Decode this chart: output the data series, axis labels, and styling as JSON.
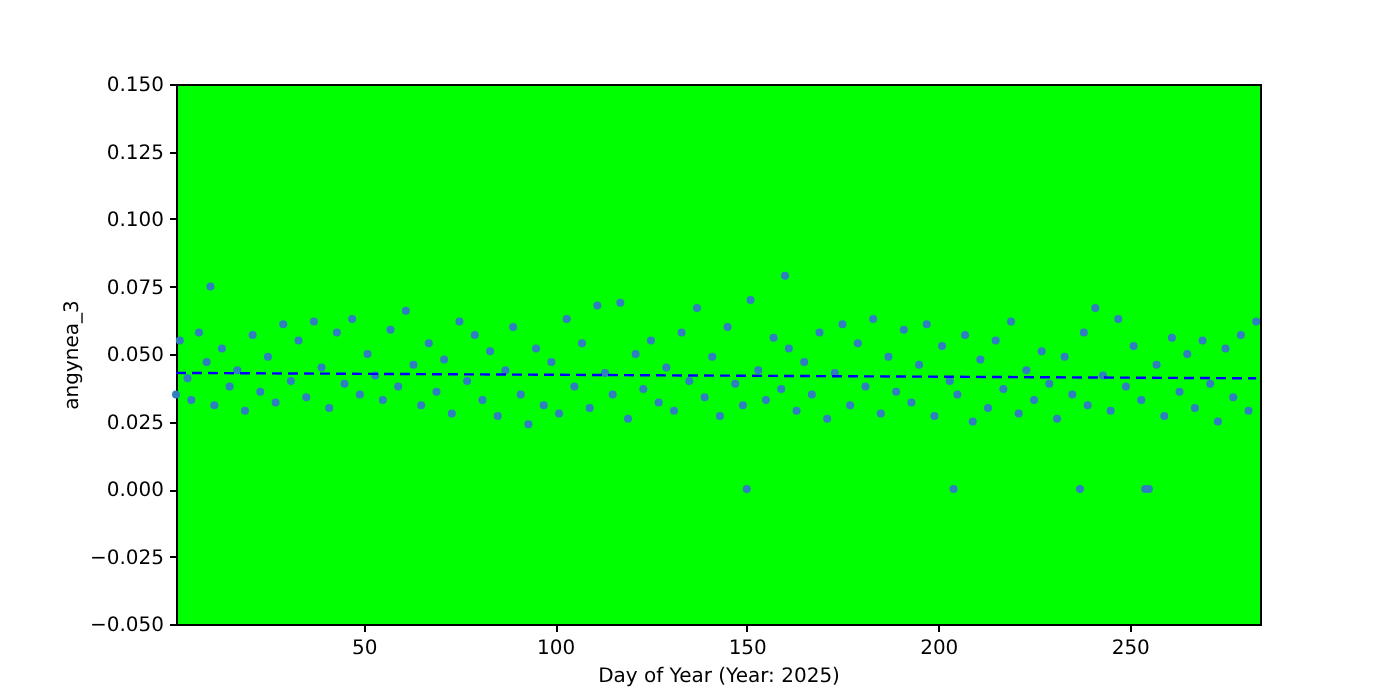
{
  "chart_data": {
    "type": "scatter",
    "xlabel": "Day of Year (Year: 2025)",
    "ylabel": "angynea_3",
    "xlim": [
      1,
      284
    ],
    "xticks": [
      50,
      100,
      150,
      200,
      250
    ],
    "ylim": [
      -0.05,
      0.15
    ],
    "yticks": [
      {
        "value": -0.05,
        "label": "−0.050"
      },
      {
        "value": -0.025,
        "label": "−0.025"
      },
      {
        "value": 0,
        "label": "0.000"
      },
      {
        "value": 0.025,
        "label": "0.025"
      },
      {
        "value": 0.05,
        "label": "0.050"
      },
      {
        "value": 0.075,
        "label": "0.075"
      },
      {
        "value": 0.1,
        "label": "0.100"
      },
      {
        "value": 0.125,
        "label": "0.125"
      },
      {
        "value": 0.15,
        "label": "0.150"
      }
    ],
    "grid": false,
    "series": [
      {
        "marker": "circle",
        "color": "#2f7fc0",
        "x": [
          1,
          2,
          4,
          5,
          7,
          9,
          10,
          11,
          13,
          15,
          17,
          19,
          21,
          23,
          25,
          27,
          29,
          31,
          33,
          35,
          37,
          39,
          41,
          43,
          45,
          47,
          49,
          51,
          53,
          55,
          57,
          59,
          61,
          63,
          65,
          67,
          69,
          71,
          73,
          75,
          77,
          79,
          81,
          83,
          85,
          87,
          89,
          91,
          93,
          95,
          97,
          99,
          101,
          103,
          105,
          107,
          109,
          111,
          113,
          115,
          117,
          119,
          121,
          123,
          125,
          127,
          129,
          131,
          133,
          135,
          137,
          139,
          141,
          143,
          145,
          147,
          149,
          150,
          151,
          153,
          155,
          157,
          159,
          160,
          161,
          163,
          165,
          167,
          169,
          171,
          173,
          175,
          177,
          179,
          181,
          183,
          185,
          187,
          189,
          191,
          193,
          195,
          197,
          199,
          201,
          203,
          204,
          205,
          207,
          209,
          211,
          213,
          215,
          217,
          219,
          221,
          223,
          225,
          227,
          229,
          231,
          233,
          235,
          237,
          238,
          239,
          241,
          243,
          245,
          247,
          249,
          251,
          253,
          254,
          255,
          257,
          259,
          261,
          263,
          265,
          267,
          269,
          271,
          273,
          275,
          277,
          279,
          281,
          283
        ],
        "values": [
          0.035,
          0.055,
          0.041,
          0.033,
          0.058,
          0.047,
          0.075,
          0.031,
          0.052,
          0.038,
          0.044,
          0.029,
          0.057,
          0.036,
          0.049,
          0.032,
          0.061,
          0.04,
          0.055,
          0.034,
          0.062,
          0.045,
          0.03,
          0.058,
          0.039,
          0.063,
          0.035,
          0.05,
          0.042,
          0.033,
          0.059,
          0.038,
          0.066,
          0.046,
          0.031,
          0.054,
          0.036,
          0.048,
          0.028,
          0.062,
          0.04,
          0.057,
          0.033,
          0.051,
          0.027,
          0.044,
          0.06,
          0.035,
          0.024,
          0.052,
          0.031,
          0.047,
          0.028,
          0.063,
          0.038,
          0.054,
          0.03,
          0.068,
          0.043,
          0.035,
          0.069,
          0.026,
          0.05,
          0.037,
          0.055,
          0.032,
          0.045,
          0.029,
          0.058,
          0.04,
          0.067,
          0.034,
          0.049,
          0.027,
          0.06,
          0.039,
          0.031,
          0.0,
          0.07,
          0.044,
          0.033,
          0.056,
          0.037,
          0.079,
          0.052,
          0.029,
          0.047,
          0.035,
          0.058,
          0.026,
          0.043,
          0.061,
          0.031,
          0.054,
          0.038,
          0.063,
          0.028,
          0.049,
          0.036,
          0.059,
          0.032,
          0.046,
          0.061,
          0.027,
          0.053,
          0.04,
          0.0,
          0.035,
          0.057,
          0.025,
          0.048,
          0.03,
          0.055,
          0.037,
          0.062,
          0.028,
          0.044,
          0.033,
          0.051,
          0.039,
          0.026,
          0.049,
          0.035,
          0.0,
          0.058,
          0.031,
          0.067,
          0.042,
          0.029,
          0.063,
          0.038,
          0.053,
          0.033,
          0.0,
          0.0,
          0.046,
          0.027,
          0.056,
          0.036,
          0.05,
          0.03,
          0.055,
          0.039,
          0.025,
          0.052,
          0.034,
          0.057,
          0.029,
          0.062
        ]
      },
      {
        "type": "line",
        "color": "#0000ff",
        "line_style": "dashed",
        "x": [
          1,
          283
        ],
        "values": [
          0.043,
          0.041
        ]
      }
    ]
  }
}
